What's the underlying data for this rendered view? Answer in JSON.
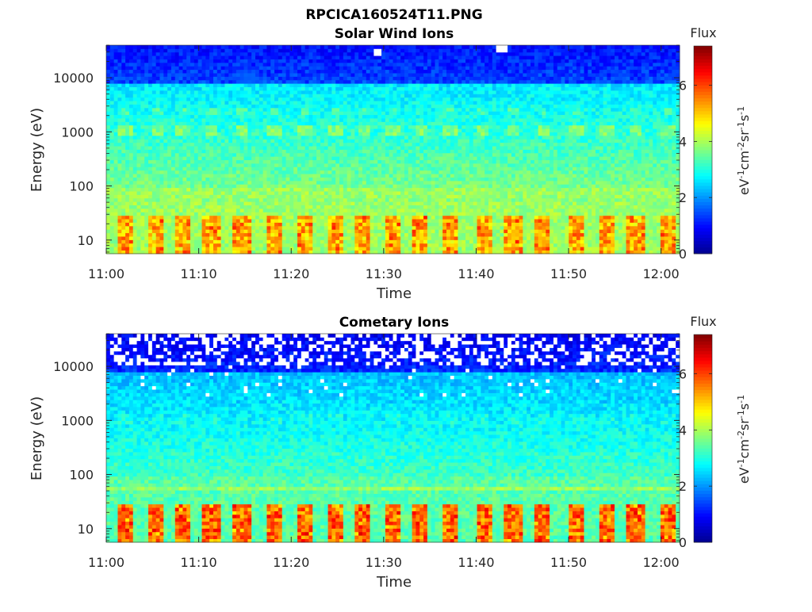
{
  "figure": {
    "title": "RPCICA160524T11.PNG"
  },
  "colormap": [
    "#00008f",
    "#0000ff",
    "#0080ff",
    "#00ffff",
    "#80ff80",
    "#ffff00",
    "#ff8000",
    "#ff0000",
    "#800000"
  ],
  "chart_data": [
    {
      "type": "heatmap",
      "title": "Solar Wind Ions",
      "xlabel": "Time",
      "ylabel": "Energy (eV)",
      "x_range": [
        "11:00",
        "12:02"
      ],
      "x_ticks": [
        "11:00",
        "11:10",
        "11:20",
        "11:30",
        "11:40",
        "11:50",
        "12:00"
      ],
      "y_scale": "log",
      "y_range": [
        5.6,
        40000
      ],
      "y_ticks": [
        10,
        100,
        1000,
        10000
      ],
      "y_tick_labels": [
        "10",
        "100",
        "1000",
        "10000"
      ],
      "colorbar": {
        "title": "Flux",
        "label": "eV-1cm-2sr-1s-1",
        "range": [
          0,
          7.4
        ],
        "ticks": [
          0,
          2,
          4,
          6
        ]
      },
      "periodic_burst_minutes": [
        2.0,
        5.5,
        8.3,
        11.3,
        14.7,
        18.2,
        21.5,
        24.8,
        27.8,
        31.0,
        34.0,
        37.2,
        40.8,
        44.0,
        47.2,
        50.9,
        54.1,
        57.3,
        60.7
      ],
      "profile": {
        "high_energy_level": 1.0,
        "mid_energy_level": 2.6,
        "line_energy_ev": 55,
        "line_level": 3.5,
        "low_energy_level": 3.9,
        "burst_low_level": 4.6,
        "burst_1000_level": 3.7
      },
      "data_gaps": [
        {
          "time_min": 29.2,
          "energy_ev": 30000
        },
        {
          "time_min": 42.8,
          "energy_ev": 35000
        }
      ]
    },
    {
      "type": "heatmap",
      "title": "Cometary Ions",
      "xlabel": "Time",
      "ylabel": "Energy (eV)",
      "x_range": [
        "11:00",
        "12:02"
      ],
      "x_ticks": [
        "11:00",
        "11:10",
        "11:20",
        "11:30",
        "11:40",
        "11:50",
        "12:00"
      ],
      "y_scale": "log",
      "y_range": [
        5.6,
        40000
      ],
      "y_ticks": [
        10,
        100,
        1000,
        10000
      ],
      "y_tick_labels": [
        "10",
        "100",
        "1000",
        "10000"
      ],
      "colorbar": {
        "title": "Flux",
        "label": "eV-1cm-2sr-1s-1",
        "range": [
          0,
          7.4
        ],
        "ticks": [
          0,
          2,
          4,
          6
        ]
      },
      "periodic_burst_minutes": [
        2.0,
        5.5,
        8.3,
        11.3,
        14.7,
        18.2,
        21.5,
        24.8,
        27.8,
        31.0,
        34.0,
        37.2,
        40.8,
        44.0,
        47.2,
        50.9,
        54.1,
        57.3,
        60.7
      ],
      "profile": {
        "high_energy_level": 0.8,
        "mid_energy_level": 2.3,
        "line_energy_ev": 55,
        "line_level": 3.6,
        "low_energy_level": 3.4,
        "burst_low_level": 5.0,
        "burst_1000_level": 2.9
      },
      "data_gap_band_ev": [
        10500,
        40000
      ]
    }
  ]
}
